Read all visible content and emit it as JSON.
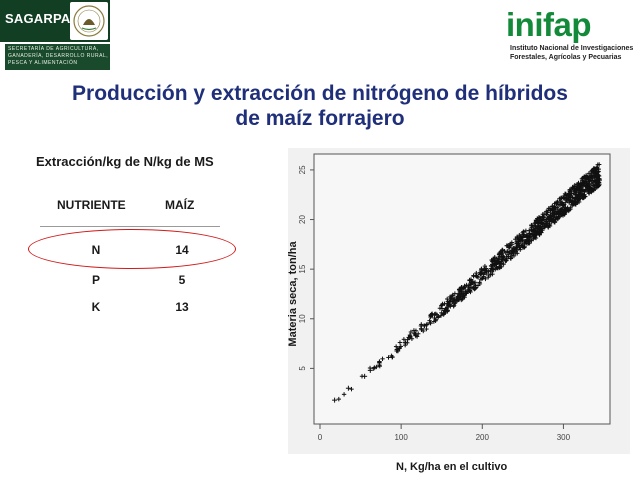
{
  "header": {
    "sagarpa_name": "SAGARPA",
    "sagarpa_subtitle_lines": [
      "SECRETARÍA DE AGRICULTURA,",
      "GANADERÍA, DESARROLLO RURAL,",
      "PESCA Y ALIMENTACIÓN"
    ],
    "inifap_name": "inifap",
    "inifap_subtitle_lines": [
      "Instituto Nacional de Investigaciones",
      "Forestales, Agrícolas y Pecuarias"
    ]
  },
  "slide": {
    "title_line1": "Producción y extracción de nitrógeno de híbridos",
    "title_line2": "de maíz forrajero",
    "subtitle": "Extracción/kg de N/kg de MS"
  },
  "table": {
    "headers": [
      "NUTRIENTE",
      "MAÍZ"
    ],
    "rows": [
      {
        "nutrient": "N",
        "value": "14"
      },
      {
        "nutrient": "P",
        "value": "5"
      },
      {
        "nutrient": "K",
        "value": "13"
      }
    ],
    "highlight_color": "#d11a1a"
  },
  "chart_data": {
    "type": "scatter",
    "ylabel": "Materia seca, ton/ha",
    "xlabel": "N, Kg/ha en el cultivo",
    "xlim": [
      0,
      350
    ],
    "ylim": [
      0,
      26
    ],
    "x_ticks": [
      0,
      100,
      200,
      300
    ],
    "y_ticks": [
      5,
      10,
      15,
      20,
      25
    ],
    "marker": "+",
    "trend": {
      "x_start": 15,
      "x_end": 345,
      "slope": 0.0705,
      "intercept": 0.3
    },
    "sample_points": [
      {
        "x": 18,
        "y": 1.8
      },
      {
        "x": 35,
        "y": 3.0
      },
      {
        "x": 55,
        "y": 4.2
      },
      {
        "x": 62,
        "y": 4.8
      },
      {
        "x": 95,
        "y": 6.9
      },
      {
        "x": 105,
        "y": 7.6
      },
      {
        "x": 118,
        "y": 8.3
      },
      {
        "x": 125,
        "y": 9.0
      },
      {
        "x": 150,
        "y": 10.6
      },
      {
        "x": 160,
        "y": 11.5
      },
      {
        "x": 175,
        "y": 12.6
      },
      {
        "x": 190,
        "y": 13.5
      },
      {
        "x": 205,
        "y": 14.6
      },
      {
        "x": 225,
        "y": 16.0
      },
      {
        "x": 240,
        "y": 17.1
      },
      {
        "x": 255,
        "y": 18.2
      },
      {
        "x": 270,
        "y": 19.3
      },
      {
        "x": 285,
        "y": 20.4
      },
      {
        "x": 300,
        "y": 21.4
      },
      {
        "x": 315,
        "y": 22.5
      },
      {
        "x": 330,
        "y": 23.5
      },
      {
        "x": 342,
        "y": 24.3
      }
    ],
    "point_color": "#111111"
  }
}
